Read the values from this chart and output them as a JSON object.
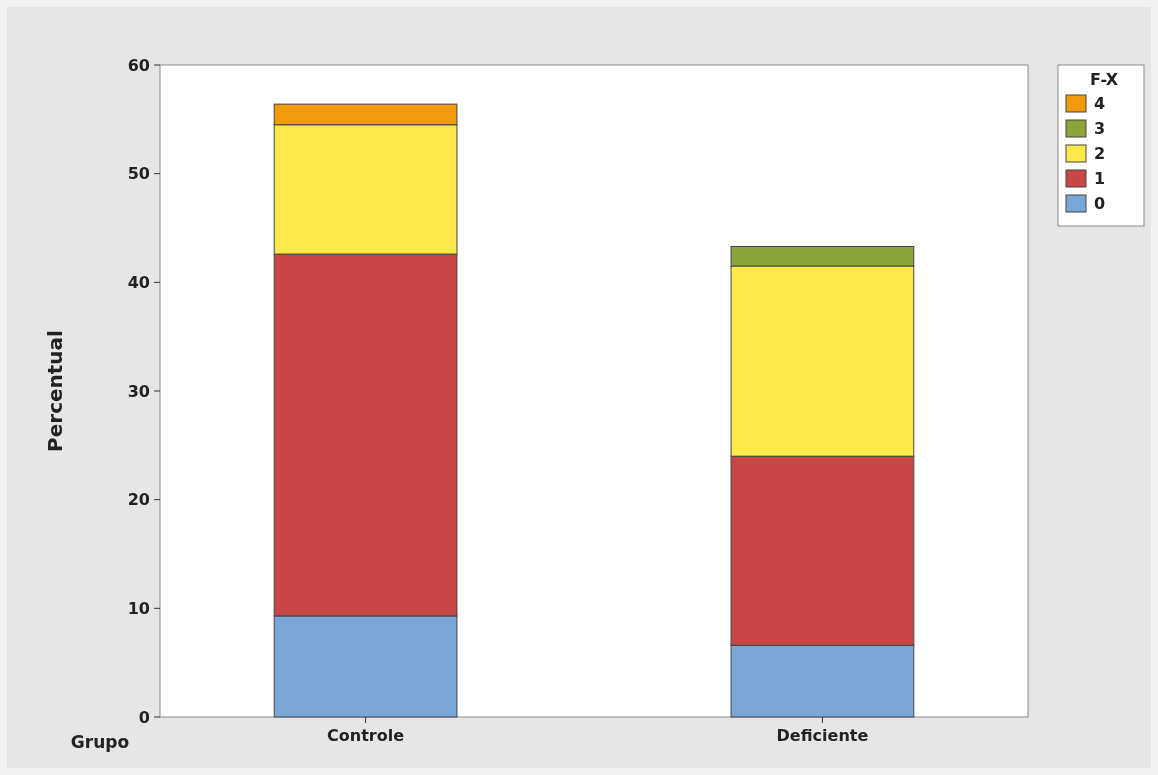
{
  "chart_data": {
    "type": "bar",
    "stacked": true,
    "xlabel": "Grupo",
    "ylabel": "Percentual",
    "legend_title": "F-X",
    "legend": "right",
    "categories": [
      "Controle",
      "Deficiente"
    ],
    "series": [
      {
        "name": "0",
        "color": "#7ba6d8",
        "values": [
          9.3,
          6.6
        ]
      },
      {
        "name": "1",
        "color": "#c84646",
        "values": [
          33.3,
          17.4
        ]
      },
      {
        "name": "2",
        "color": "#ffe94a",
        "values": [
          11.9,
          17.5
        ]
      },
      {
        "name": "3",
        "color": "#8ba43a",
        "values": [
          0,
          1.8
        ]
      },
      {
        "name": "4",
        "color": "#f39a0c",
        "values": [
          1.9,
          0
        ]
      }
    ],
    "ylim": [
      0,
      60
    ],
    "yticks": [
      0,
      10,
      20,
      30,
      40,
      50,
      60
    ]
  }
}
